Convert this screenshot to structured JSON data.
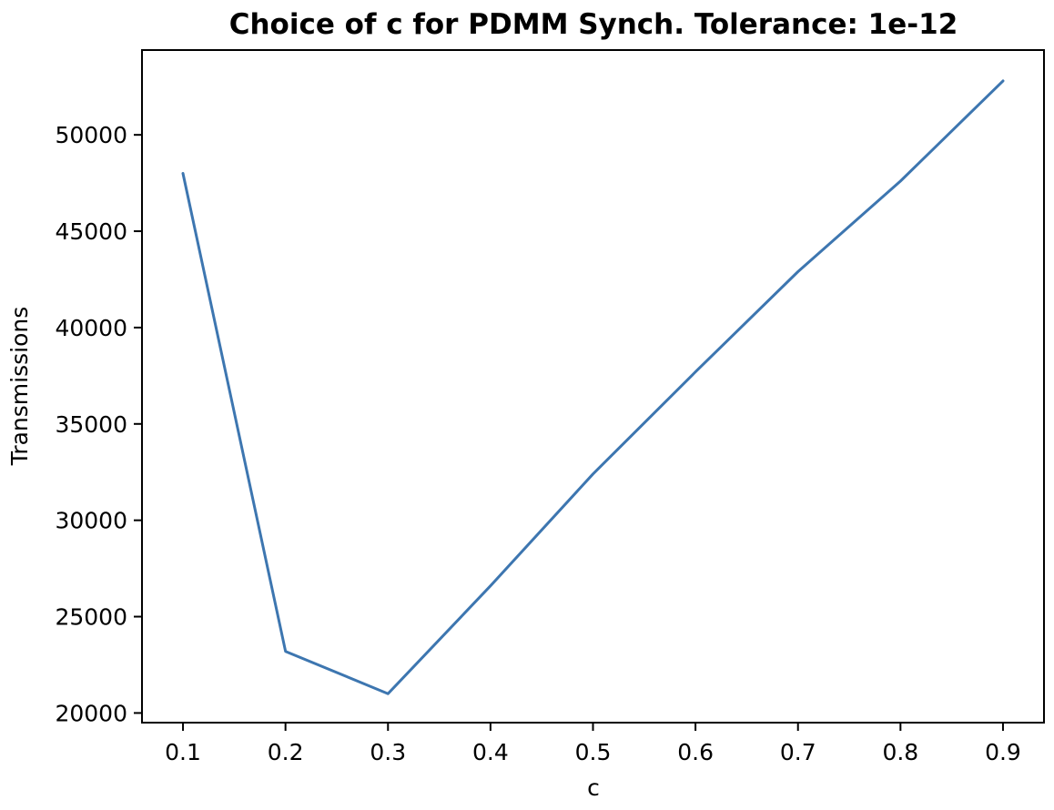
{
  "chart_data": {
    "type": "line",
    "title": "Choice of c for PDMM Synch. Tolerance: 1e-12",
    "xlabel": "c",
    "ylabel": "Transmissions",
    "x": [
      0.1,
      0.2,
      0.3,
      0.4,
      0.5,
      0.6,
      0.7,
      0.8,
      0.9
    ],
    "series": [
      {
        "values": [
          48000,
          23200,
          21000,
          26600,
          32400,
          37700,
          42900,
          47600,
          52800
        ]
      }
    ],
    "xlim": [
      0.06,
      0.94
    ],
    "ylim": [
      19500,
      54400
    ],
    "xticks": [
      "0.1",
      "0.2",
      "0.3",
      "0.4",
      "0.5",
      "0.6",
      "0.7",
      "0.8",
      "0.9"
    ],
    "yticks": [
      "20000",
      "25000",
      "30000",
      "35000",
      "40000",
      "45000",
      "50000"
    ],
    "line_color": "#3d76b0",
    "grid": false,
    "legend": "none"
  }
}
